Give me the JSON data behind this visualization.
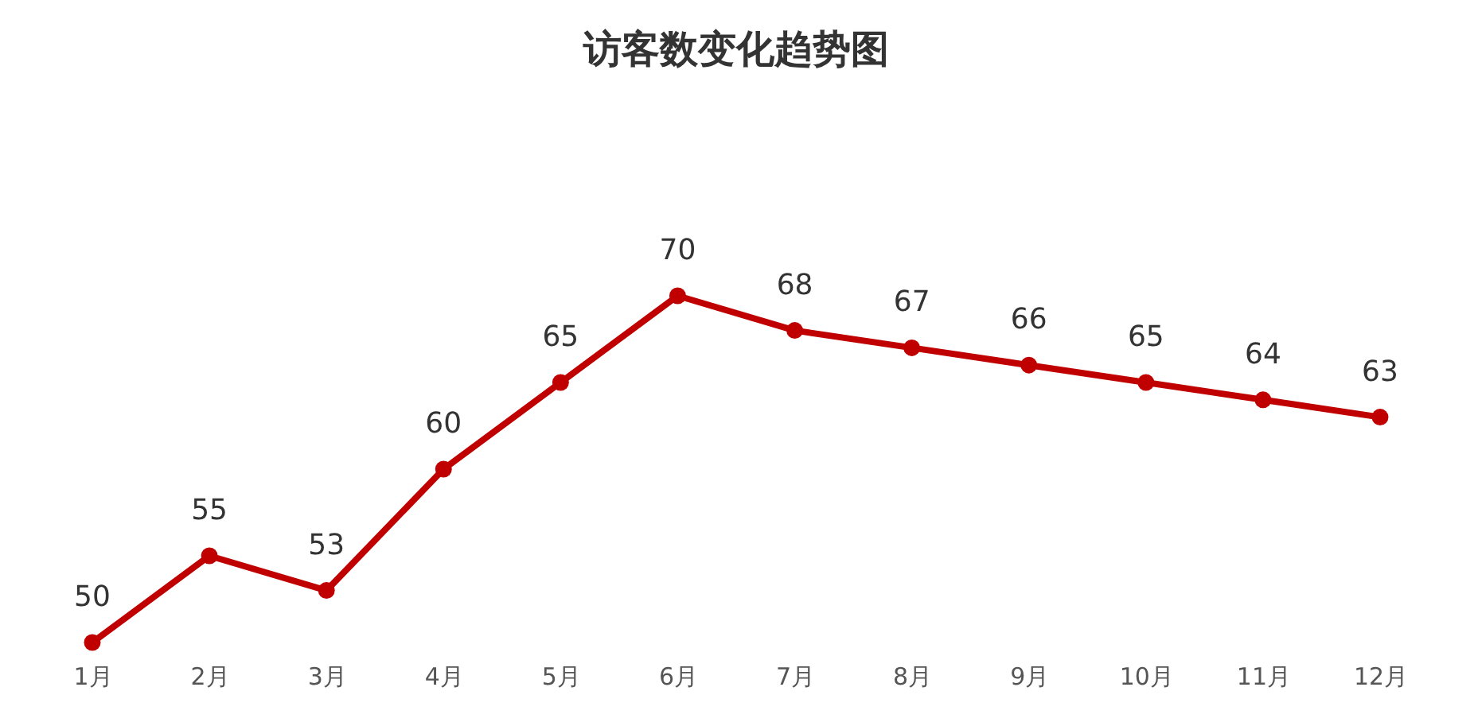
{
  "chart_data": {
    "type": "line",
    "title": "访客数变化趋势图",
    "categories": [
      "1月",
      "2月",
      "3月",
      "4月",
      "5月",
      "6月",
      "7月",
      "8月",
      "9月",
      "10月",
      "11月",
      "12月"
    ],
    "values": [
      50,
      55,
      53,
      60,
      65,
      70,
      68,
      67,
      66,
      65,
      64,
      63
    ],
    "color": "#c00000",
    "data_labels": true,
    "marker": "circle",
    "line_style": "solid",
    "grid": false,
    "tick_labels": "x"
  }
}
